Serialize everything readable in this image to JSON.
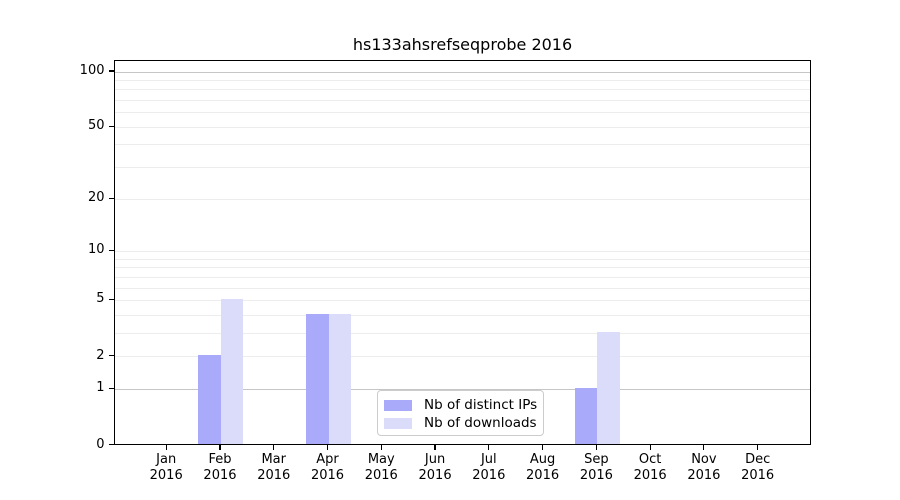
{
  "title": "hs133ahsrefseqprobe 2016",
  "y_axis": {
    "tick_values": [
      0,
      1,
      2,
      5,
      10,
      20,
      50,
      100
    ],
    "tick_labels": [
      "0",
      "1",
      "2",
      "5",
      "10",
      "20",
      "50",
      "100"
    ]
  },
  "x_axis": {
    "months": [
      [
        "Jan",
        "2016"
      ],
      [
        "Feb",
        "2016"
      ],
      [
        "Mar",
        "2016"
      ],
      [
        "Apr",
        "2016"
      ],
      [
        "May",
        "2016"
      ],
      [
        "Jun",
        "2016"
      ],
      [
        "Jul",
        "2016"
      ],
      [
        "Aug",
        "2016"
      ],
      [
        "Sep",
        "2016"
      ],
      [
        "Oct",
        "2016"
      ],
      [
        "Nov",
        "2016"
      ],
      [
        "Dec",
        "2016"
      ]
    ]
  },
  "legend": {
    "items": [
      {
        "label": "Nb of distinct IPs",
        "key": "distinct_ips"
      },
      {
        "label": "Nb of downloads",
        "key": "downloads"
      }
    ]
  },
  "colors": {
    "distinct_ips": "#aaaafa",
    "downloads": "#dbdbfa",
    "grid_major": "#c6c6c6",
    "grid_minor": "#ededed",
    "axis": "#000000",
    "background": "#ffffff"
  },
  "chart_data": {
    "type": "bar",
    "title": "hs133ahsrefseqprobe 2016",
    "categories": [
      "Jan 2016",
      "Feb 2016",
      "Mar 2016",
      "Apr 2016",
      "May 2016",
      "Jun 2016",
      "Jul 2016",
      "Aug 2016",
      "Sep 2016",
      "Oct 2016",
      "Nov 2016",
      "Dec 2016"
    ],
    "series": [
      {
        "name": "Nb of distinct IPs",
        "values": [
          0,
          2,
          0,
          4,
          0,
          0,
          0,
          0,
          1,
          0,
          0,
          0
        ]
      },
      {
        "name": "Nb of downloads",
        "values": [
          0,
          5,
          0,
          4,
          0,
          0,
          0,
          0,
          3,
          0,
          0,
          0
        ]
      }
    ],
    "yscale": "log1p",
    "y_ticks": [
      0,
      1,
      2,
      5,
      10,
      20,
      50,
      100
    ],
    "ylim": [
      0,
      107
    ],
    "gridline_values": [
      1,
      2,
      3,
      4,
      5,
      6,
      7,
      8,
      9,
      10,
      20,
      30,
      40,
      50,
      60,
      70,
      80,
      90,
      100
    ],
    "grid": "horizontal",
    "legend_position": "inside lower-center"
  }
}
